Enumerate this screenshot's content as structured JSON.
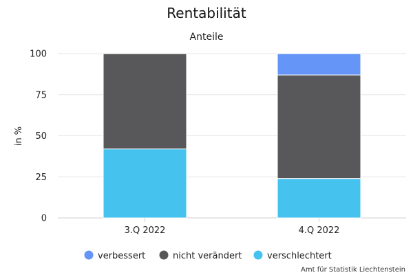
{
  "chart_data": {
    "type": "bar",
    "stacked": true,
    "title": "Rentabilität",
    "subtitle": "Anteile",
    "ylabel": "in %",
    "xlabel": "",
    "ylim": [
      0,
      100
    ],
    "yticks": [
      0,
      25,
      50,
      75,
      100
    ],
    "grid": true,
    "legend_position": "bottom",
    "categories": [
      "3.Q 2022",
      "4.Q 2022"
    ],
    "series": [
      {
        "name": "verschlechtert",
        "color": "#45c2ee",
        "values": [
          42,
          24
        ]
      },
      {
        "name": "nicht verändert",
        "color": "#58585a",
        "values": [
          58,
          63
        ]
      },
      {
        "name": "verbessert",
        "color": "#6495f7",
        "values": [
          0,
          13
        ]
      }
    ],
    "legend_order": [
      "verbessert",
      "nicht verändert",
      "verschlechtert"
    ]
  },
  "credit": "Amt für Statistik Liechtenstein"
}
